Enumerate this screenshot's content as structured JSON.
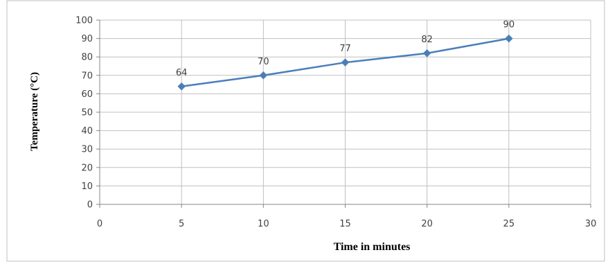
{
  "chart_data": {
    "type": "scatter",
    "title": "",
    "xlabel": "Time in minutes",
    "ylabel": "Temperature (°C)",
    "xlim": [
      0,
      30
    ],
    "ylim": [
      0,
      100
    ],
    "xticks": [
      "0",
      "5",
      "10",
      "15",
      "20",
      "25",
      "30"
    ],
    "yticks": [
      "0",
      "10",
      "20",
      "30",
      "40",
      "50",
      "60",
      "70",
      "80",
      "90",
      "100"
    ],
    "grid": true,
    "legend": "none",
    "series": [
      {
        "x": [
          5,
          10,
          15,
          20,
          25
        ],
        "values": [
          64,
          70,
          77,
          82,
          90
        ],
        "labels": [
          "64",
          "70",
          "77",
          "82",
          "90"
        ],
        "color": "#4a7ebb",
        "marker": "diamond"
      }
    ]
  }
}
